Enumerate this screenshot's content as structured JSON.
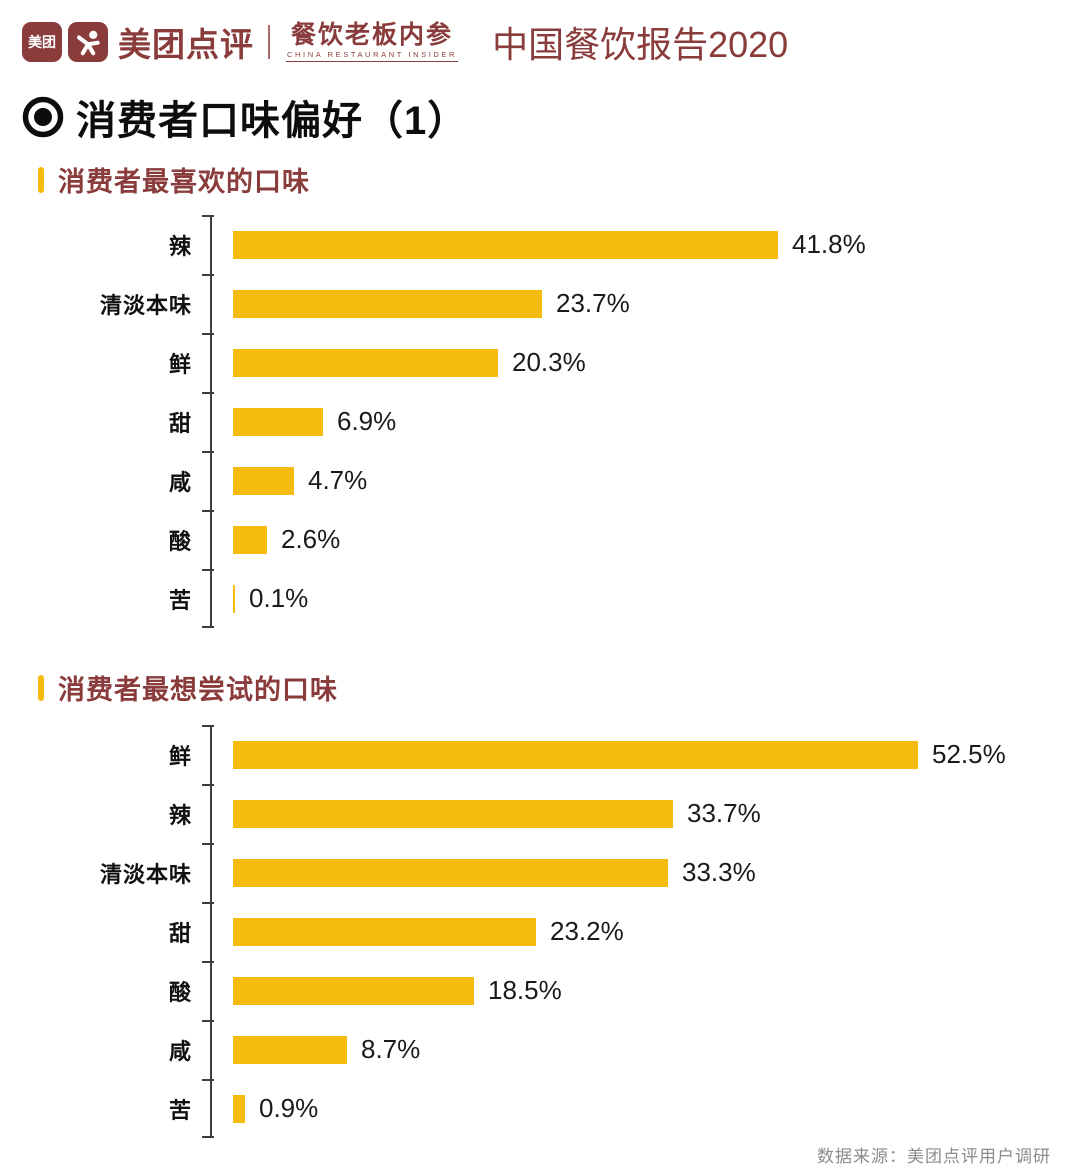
{
  "header": {
    "meituan_badge": "美团",
    "brand": "美团点评",
    "sub_brand": "餐饮老板内参",
    "sub_brand_en": "CHINA RESTAURANT INSIDER",
    "report_title": "中国餐饮报告2020"
  },
  "page_title": "消费者口味偏好（1）",
  "source_note": "数据来源：美团点评用户调研",
  "colors": {
    "bar": "#f5bc0e",
    "maroon": "#8a3b3b",
    "axis": "#3d3d3d",
    "text": "#111111",
    "source_text": "#8c8c8c"
  },
  "chart_data": [
    {
      "type": "bar",
      "orientation": "horizontal",
      "title": "消费者最喜欢的口味",
      "categories": [
        "辣",
        "清淡本味",
        "鲜",
        "甜",
        "咸",
        "酸",
        "苦"
      ],
      "values": [
        41.8,
        23.7,
        20.3,
        6.9,
        4.7,
        2.6,
        0.1
      ],
      "labels": [
        "41.8%",
        "23.7%",
        "20.3%",
        "6.9%",
        "4.7%",
        "2.6%",
        "0.1%"
      ],
      "unit": "%",
      "xlim": [
        0,
        60
      ],
      "grid": false,
      "legend": false
    },
    {
      "type": "bar",
      "orientation": "horizontal",
      "title": "消费者最想尝试的口味",
      "categories": [
        "鲜",
        "辣",
        "清淡本味",
        "甜",
        "酸",
        "咸",
        "苦"
      ],
      "values": [
        52.5,
        33.7,
        33.3,
        23.2,
        18.5,
        8.7,
        0.9
      ],
      "labels": [
        "52.5%",
        "33.7%",
        "33.3%",
        "23.2%",
        "18.5%",
        "8.7%",
        "0.9%"
      ],
      "unit": "%",
      "xlim": [
        0,
        60
      ],
      "grid": false,
      "legend": false
    }
  ]
}
